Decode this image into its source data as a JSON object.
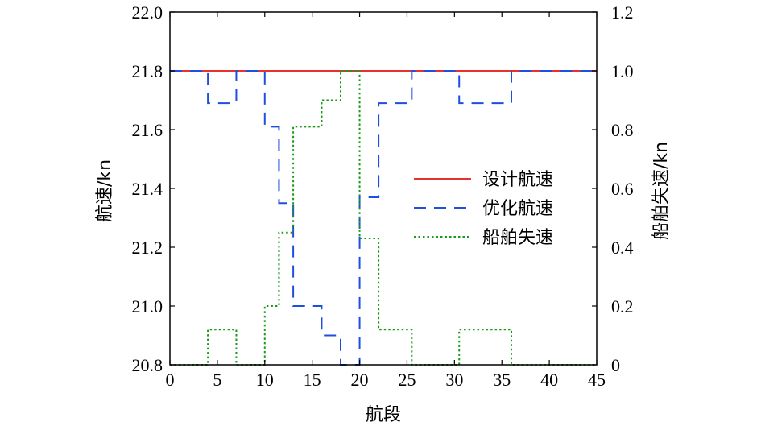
{
  "chart_data": {
    "type": "line",
    "xlabel": "航段",
    "ylabel_left": "航速/kn",
    "ylabel_right": "船舶失速/kn",
    "xlim": [
      0,
      45
    ],
    "ylim_left": [
      20.8,
      22.0
    ],
    "ylim_right": [
      0,
      1.2
    ],
    "x_ticks": [
      "0",
      "5",
      "10",
      "15",
      "20",
      "25",
      "30",
      "35",
      "40",
      "45"
    ],
    "y_left_ticks": [
      "20.8",
      "21.0",
      "21.2",
      "21.4",
      "21.6",
      "21.8",
      "22.0"
    ],
    "y_right_ticks": [
      "0",
      "0.2",
      "0.4",
      "0.6",
      "0.8",
      "1.0",
      "1.2"
    ],
    "legend_position": "center-right",
    "series": [
      {
        "name": "设计航速",
        "axis": "left",
        "color": "#e8322d",
        "style": "solid",
        "x": [
          0,
          45
        ],
        "y": [
          21.8,
          21.8
        ]
      },
      {
        "name": "优化航速",
        "axis": "left",
        "color": "#1f4fe0",
        "style": "dashed",
        "x": [
          0,
          4,
          4,
          7,
          7,
          10,
          10,
          11.5,
          11.5,
          13,
          13,
          16,
          16,
          18,
          18,
          20,
          20,
          22,
          22,
          25.5,
          25.5,
          30.5,
          30.5,
          36,
          36,
          45
        ],
        "y": [
          21.8,
          21.8,
          21.69,
          21.69,
          21.8,
          21.8,
          21.61,
          21.61,
          21.35,
          21.35,
          21.0,
          21.0,
          20.9,
          20.9,
          20.8,
          20.8,
          21.37,
          21.37,
          21.69,
          21.69,
          21.8,
          21.8,
          21.69,
          21.69,
          21.8,
          21.8
        ]
      },
      {
        "name": "船舶失速",
        "axis": "right",
        "color": "#1a9a1a",
        "style": "dotted",
        "x": [
          0,
          4,
          4,
          7,
          7,
          10,
          10,
          11.5,
          11.5,
          13,
          13,
          16,
          16,
          18,
          18,
          20,
          20,
          22,
          22,
          25.5,
          25.5,
          30.5,
          30.5,
          36,
          36,
          45
        ],
        "y": [
          0,
          0,
          0.12,
          0.12,
          0,
          0,
          0.2,
          0.2,
          0.45,
          0.45,
          0.81,
          0.81,
          0.9,
          0.9,
          1.0,
          1.0,
          0.43,
          0.43,
          0.12,
          0.12,
          0,
          0,
          0.12,
          0.12,
          0,
          0
        ]
      }
    ]
  }
}
